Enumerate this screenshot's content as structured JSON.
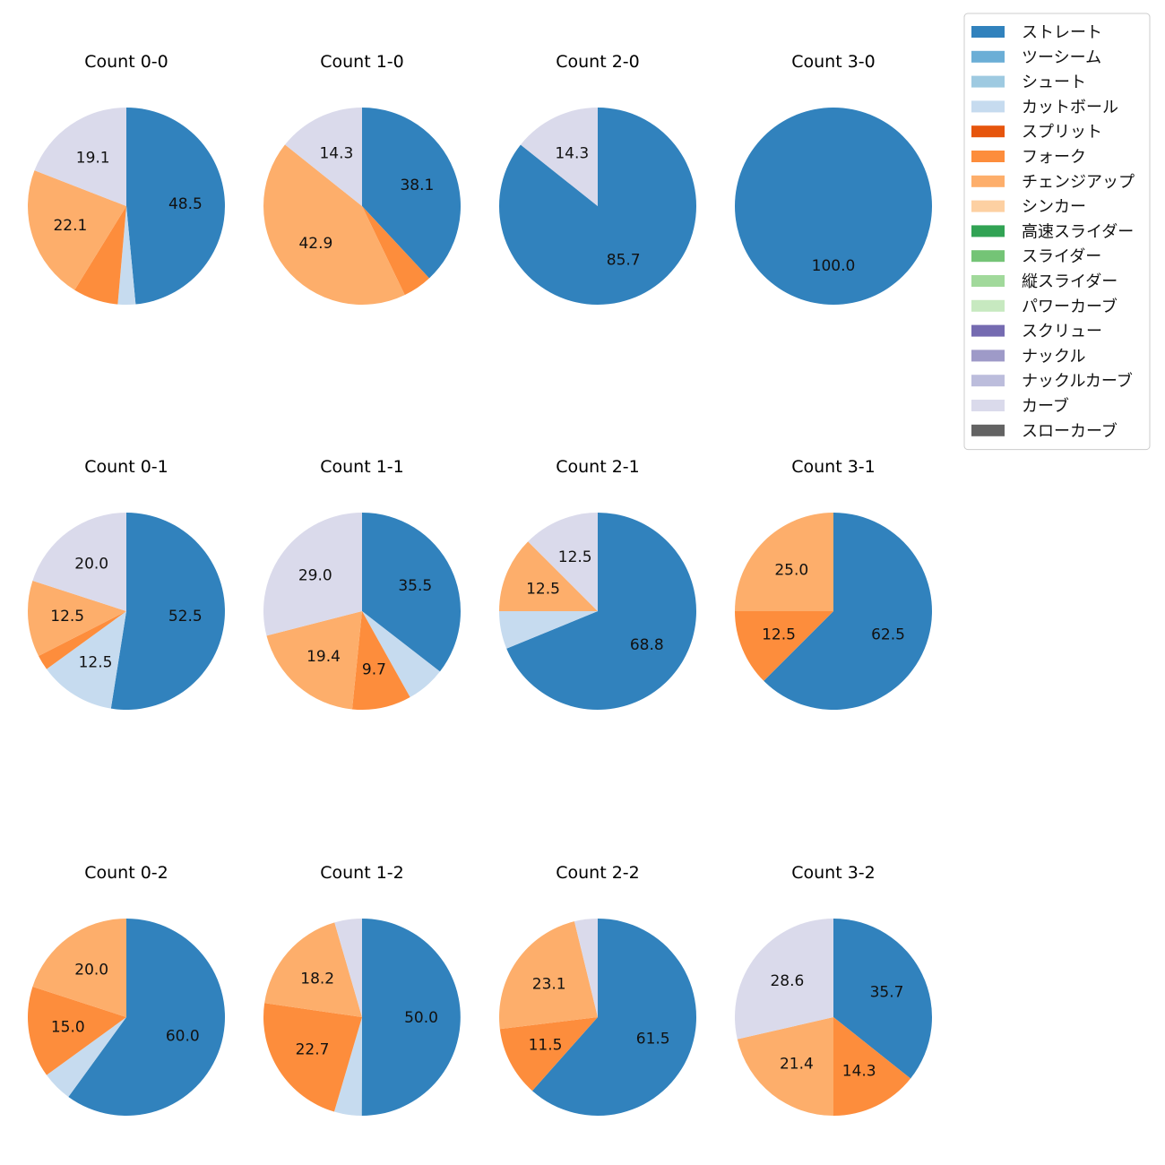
{
  "legend": {
    "entries": [
      {
        "label": "ストレート",
        "color": "#3182bd"
      },
      {
        "label": "ツーシーム",
        "color": "#6baed6"
      },
      {
        "label": "シュート",
        "color": "#9ecae1"
      },
      {
        "label": "カットボール",
        "color": "#c6dbef"
      },
      {
        "label": "スプリット",
        "color": "#e6550d"
      },
      {
        "label": "フォーク",
        "color": "#fd8d3c"
      },
      {
        "label": "チェンジアップ",
        "color": "#fdae6b"
      },
      {
        "label": "シンカー",
        "color": "#fdd0a2"
      },
      {
        "label": "高速スライダー",
        "color": "#31a354"
      },
      {
        "label": "スライダー",
        "color": "#74c476"
      },
      {
        "label": "縦スライダー",
        "color": "#a1d99b"
      },
      {
        "label": "パワーカーブ",
        "color": "#c7e9c0"
      },
      {
        "label": "スクリュー",
        "color": "#756bb1"
      },
      {
        "label": "ナックル",
        "color": "#9e9ac8"
      },
      {
        "label": "ナックルカーブ",
        "color": "#bcbddc"
      },
      {
        "label": "カーブ",
        "color": "#dadaeb"
      },
      {
        "label": "スローカーブ",
        "color": "#636363"
      }
    ]
  },
  "chart_data": [
    {
      "type": "pie",
      "title": "Count 0-0",
      "slices": [
        {
          "name": "ストレート",
          "value": 48.5,
          "label": "48.5"
        },
        {
          "name": "カットボール",
          "value": 2.9,
          "label": ""
        },
        {
          "name": "フォーク",
          "value": 7.4,
          "label": ""
        },
        {
          "name": "チェンジアップ",
          "value": 22.1,
          "label": "22.1"
        },
        {
          "name": "カーブ",
          "value": 19.1,
          "label": "19.1"
        }
      ]
    },
    {
      "type": "pie",
      "title": "Count 1-0",
      "slices": [
        {
          "name": "ストレート",
          "value": 38.1,
          "label": "38.1"
        },
        {
          "name": "フォーク",
          "value": 4.8,
          "label": ""
        },
        {
          "name": "チェンジアップ",
          "value": 42.9,
          "label": "42.9"
        },
        {
          "name": "カーブ",
          "value": 14.3,
          "label": "14.3"
        }
      ]
    },
    {
      "type": "pie",
      "title": "Count 2-0",
      "slices": [
        {
          "name": "ストレート",
          "value": 85.7,
          "label": "85.7"
        },
        {
          "name": "カーブ",
          "value": 14.3,
          "label": "14.3"
        }
      ]
    },
    {
      "type": "pie",
      "title": "Count 3-0",
      "slices": [
        {
          "name": "ストレート",
          "value": 100.0,
          "label": "100.0"
        }
      ]
    },
    {
      "type": "pie",
      "title": "Count 0-1",
      "slices": [
        {
          "name": "ストレート",
          "value": 52.5,
          "label": "52.5"
        },
        {
          "name": "カットボール",
          "value": 12.5,
          "label": "12.5"
        },
        {
          "name": "フォーク",
          "value": 2.5,
          "label": ""
        },
        {
          "name": "チェンジアップ",
          "value": 12.5,
          "label": "12.5"
        },
        {
          "name": "カーブ",
          "value": 20.0,
          "label": "20.0"
        }
      ]
    },
    {
      "type": "pie",
      "title": "Count 1-1",
      "slices": [
        {
          "name": "ストレート",
          "value": 35.5,
          "label": "35.5"
        },
        {
          "name": "カットボール",
          "value": 6.4,
          "label": ""
        },
        {
          "name": "フォーク",
          "value": 9.7,
          "label": "9.7"
        },
        {
          "name": "チェンジアップ",
          "value": 19.4,
          "label": "19.4"
        },
        {
          "name": "カーブ",
          "value": 29.0,
          "label": "29.0"
        }
      ]
    },
    {
      "type": "pie",
      "title": "Count 2-1",
      "slices": [
        {
          "name": "ストレート",
          "value": 68.8,
          "label": "68.8"
        },
        {
          "name": "カットボール",
          "value": 6.2,
          "label": ""
        },
        {
          "name": "チェンジアップ",
          "value": 12.5,
          "label": "12.5"
        },
        {
          "name": "カーブ",
          "value": 12.5,
          "label": "12.5"
        }
      ]
    },
    {
      "type": "pie",
      "title": "Count 3-1",
      "slices": [
        {
          "name": "ストレート",
          "value": 62.5,
          "label": "62.5"
        },
        {
          "name": "フォーク",
          "value": 12.5,
          "label": "12.5"
        },
        {
          "name": "チェンジアップ",
          "value": 25.0,
          "label": "25.0"
        }
      ]
    },
    {
      "type": "pie",
      "title": "Count 0-2",
      "slices": [
        {
          "name": "ストレート",
          "value": 60.0,
          "label": "60.0"
        },
        {
          "name": "カットボール",
          "value": 5.0,
          "label": ""
        },
        {
          "name": "フォーク",
          "value": 15.0,
          "label": "15.0"
        },
        {
          "name": "チェンジアップ",
          "value": 20.0,
          "label": "20.0"
        }
      ]
    },
    {
      "type": "pie",
      "title": "Count 1-2",
      "slices": [
        {
          "name": "ストレート",
          "value": 50.0,
          "label": "50.0"
        },
        {
          "name": "カットボール",
          "value": 4.5,
          "label": ""
        },
        {
          "name": "フォーク",
          "value": 22.7,
          "label": "22.7"
        },
        {
          "name": "チェンジアップ",
          "value": 18.2,
          "label": "18.2"
        },
        {
          "name": "カーブ",
          "value": 4.5,
          "label": ""
        }
      ]
    },
    {
      "type": "pie",
      "title": "Count 2-2",
      "slices": [
        {
          "name": "ストレート",
          "value": 61.5,
          "label": "61.5"
        },
        {
          "name": "フォーク",
          "value": 11.5,
          "label": "11.5"
        },
        {
          "name": "チェンジアップ",
          "value": 23.1,
          "label": "23.1"
        },
        {
          "name": "カーブ",
          "value": 3.8,
          "label": ""
        }
      ]
    },
    {
      "type": "pie",
      "title": "Count 3-2",
      "slices": [
        {
          "name": "ストレート",
          "value": 35.7,
          "label": "35.7"
        },
        {
          "name": "フォーク",
          "value": 14.3,
          "label": "14.3"
        },
        {
          "name": "チェンジアップ",
          "value": 21.4,
          "label": "21.4"
        },
        {
          "name": "カーブ",
          "value": 28.6,
          "label": "28.6"
        }
      ]
    }
  ]
}
